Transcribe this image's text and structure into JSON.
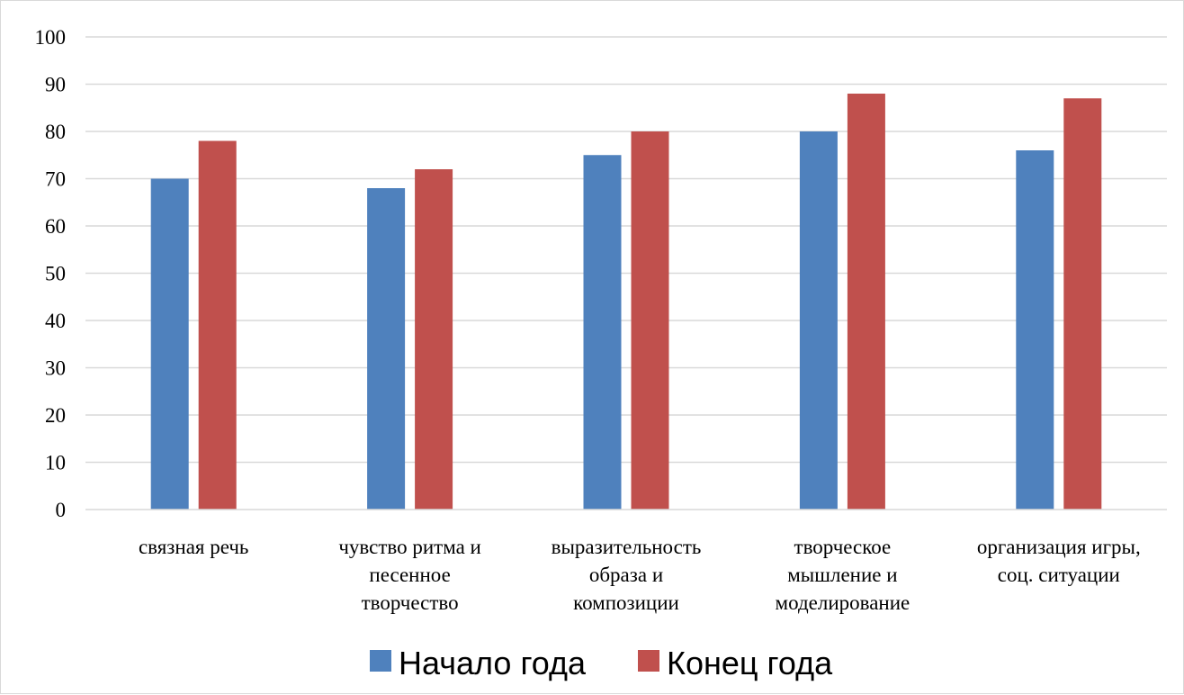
{
  "chart_data": {
    "type": "bar",
    "categories": [
      [
        "связная речь"
      ],
      [
        "чувство ритма и",
        "песенное",
        "творчество"
      ],
      [
        "выразительность",
        "образа и",
        "композиции"
      ],
      [
        "творческое",
        "мышление и",
        "моделирование"
      ],
      [
        "организация игры,",
        "соц. ситуации"
      ]
    ],
    "series": [
      {
        "name": "Начало года",
        "color": "#4f81bd",
        "values": [
          70,
          68,
          75,
          80,
          76
        ]
      },
      {
        "name": "Конец года",
        "color": "#c0504d",
        "values": [
          78,
          72,
          80,
          88,
          87
        ]
      }
    ],
    "ylim": [
      0,
      100
    ],
    "yticks": [
      0,
      10,
      20,
      30,
      40,
      50,
      60,
      70,
      80,
      90,
      100
    ],
    "grid": true,
    "legend": "bottom"
  }
}
